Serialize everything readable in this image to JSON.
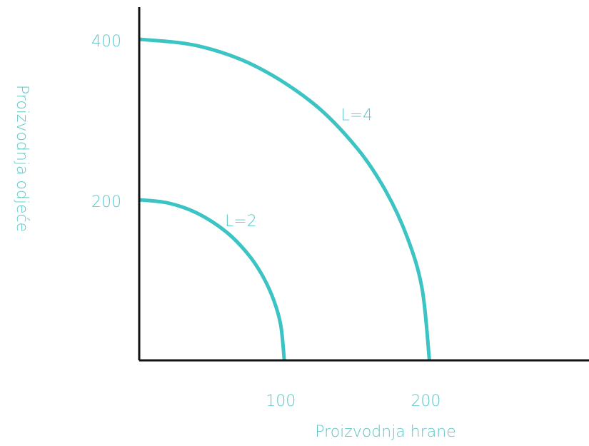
{
  "chart_data": {
    "type": "line",
    "xlabel": "Proizvodnja hrane",
    "ylabel": "Proizvodnja odjeće",
    "xlim": [
      0,
      310
    ],
    "ylim": [
      0,
      440
    ],
    "xticks": [
      100,
      200
    ],
    "yticks": [
      200,
      400
    ],
    "grid": false,
    "series": [
      {
        "name": "L=2",
        "color": "#3cc3c3",
        "x": [
          0,
          20,
          40,
          60,
          75,
          85,
          92.5,
          97.5,
          100
        ],
        "values": [
          200,
          196,
          183.3,
          160,
          132.3,
          105.4,
          76,
          44.4,
          0
        ]
      },
      {
        "name": "L=4",
        "color": "#3cc3c3",
        "x": [
          0,
          40,
          80,
          120,
          150,
          170,
          185,
          195,
          200
        ],
        "values": [
          400,
          391.9,
          366.6,
          320,
          264.6,
          210.7,
          152,
          88.9,
          0
        ]
      }
    ]
  }
}
